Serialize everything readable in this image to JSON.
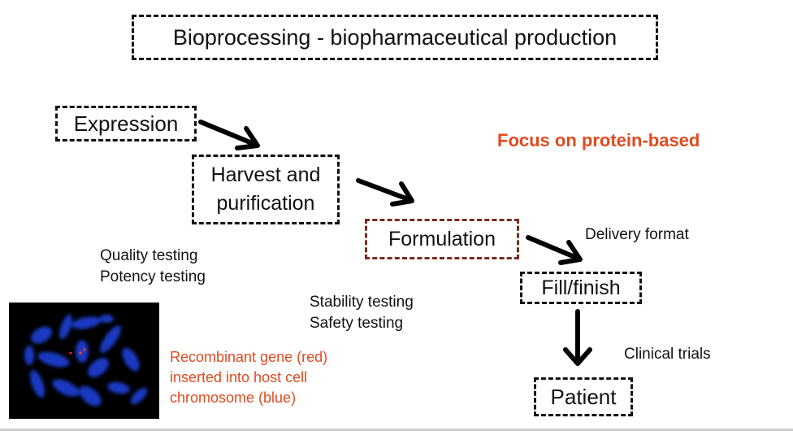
{
  "title": "Bioprocessing -  biopharmaceutical production",
  "steps": {
    "expression": "Expression",
    "harvest_line1": "Harvest and",
    "harvest_line2": "purification",
    "formulation": "Formulation",
    "fill_finish": "Fill/finish",
    "patient": "Patient"
  },
  "notes": {
    "focus": "Focus on protein-based",
    "delivery": "Delivery format",
    "clinical": "Clinical trials",
    "quality": "Quality testing",
    "potency": "Potency testing",
    "stability": "Stability testing",
    "safety": "Safety testing",
    "recomb_line1": "Recombinant gene (red)",
    "recomb_line2": "inserted into host cell",
    "recomb_line3": "chromosome (blue)"
  },
  "colors": {
    "accent": "#e24a1e",
    "formulation_border": "#7b2a1e",
    "chromosome": "#1a3fd6",
    "gene": "#ff3a2a"
  }
}
